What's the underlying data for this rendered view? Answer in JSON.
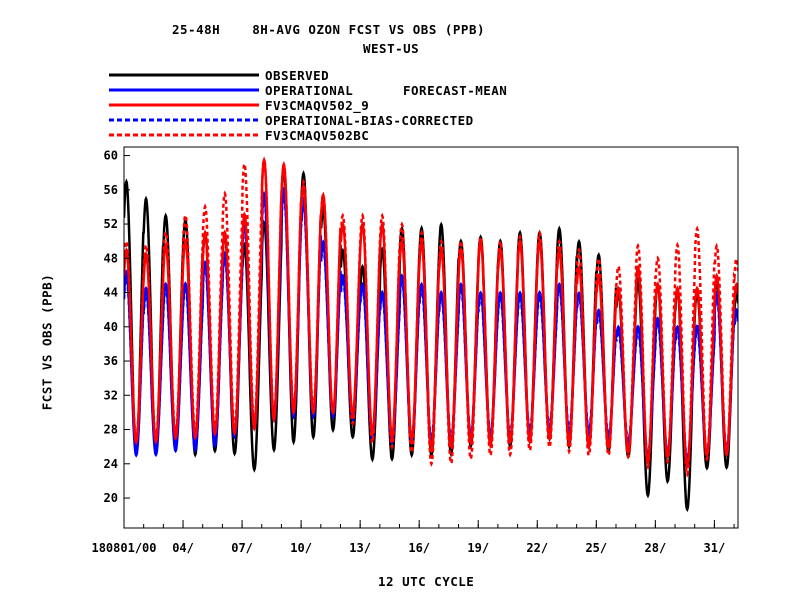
{
  "chart_data": {
    "type": "line",
    "title": "25-48H    8H-AVG OZON FCST VS OBS (PPB)",
    "subtitle": "WEST-US",
    "legend_title": "FORECAST-MEAN",
    "xlabel": "12 UTC CYCLE",
    "ylabel": "FCST VS OBS (PPB)",
    "x_ticks": [
      "180801/00",
      "04/",
      "07/",
      "10/",
      "13/",
      "16/",
      "19/",
      "22/",
      "25/",
      "28/",
      "31/"
    ],
    "x_tick_days": [
      1,
      4,
      7,
      10,
      13,
      16,
      19,
      22,
      25,
      28,
      31
    ],
    "xlim": [
      1,
      32.2
    ],
    "y_ticks": [
      20,
      24,
      28,
      32,
      36,
      40,
      44,
      48,
      52,
      56,
      60
    ],
    "ylim": [
      16.5,
      61
    ],
    "legend_placement": "top-left, above plot",
    "series": [
      {
        "name": "OBSERVED",
        "color": "#000000",
        "dash": "solid",
        "peaks": [
          57,
          55,
          53,
          52.5,
          51,
          51,
          49.5,
          52,
          58.5,
          58,
          54,
          49,
          47,
          49,
          51.5,
          51.5,
          52,
          50,
          50.5,
          50,
          51,
          51,
          51.5,
          50,
          48.5,
          44,
          45.5,
          45,
          44.5,
          44,
          45.5,
          44,
          43
        ],
        "troughs": [
          25.5,
          25.5,
          26,
          25,
          25.5,
          25.5,
          23,
          25.5,
          26.5,
          27,
          28,
          27.5,
          24.5,
          24.5,
          25,
          25,
          25,
          26,
          26.5,
          26,
          26.5,
          27,
          26,
          26,
          25.5,
          25.5,
          20,
          22.5,
          18,
          23.5,
          23.5,
          24,
          25
        ]
      },
      {
        "name": "OPERATIONAL",
        "color": "#0000ff",
        "dash": "solid",
        "peaks": [
          46.5,
          44.5,
          45,
          45,
          47.5,
          48.5,
          52,
          55.5,
          56,
          55,
          50,
          46,
          45,
          44,
          46,
          45,
          44,
          45,
          44,
          44,
          44,
          44,
          45,
          44,
          42,
          40,
          40,
          41,
          40,
          40,
          44,
          42,
          41
        ],
        "troughs": [
          25,
          25,
          25.5,
          25.5,
          26,
          27,
          28,
          29,
          29.5,
          29.5,
          29.5,
          29.5,
          27,
          26.5,
          26.5,
          26.5,
          26.5,
          27,
          27,
          27,
          27.5,
          28,
          27.5,
          27.5,
          27,
          26.5,
          24.5,
          25,
          24,
          25,
          25,
          26,
          26
        ]
      },
      {
        "name": "FV3CMAQV502_9",
        "color": "#ff0000",
        "dash": "solid",
        "peaks": [
          49,
          48.5,
          49.5,
          50,
          51,
          51,
          53,
          59.5,
          59,
          56.5,
          55.5,
          52,
          52,
          52,
          50,
          50,
          49,
          49,
          50,
          49,
          50,
          50,
          49,
          47,
          46,
          44.5,
          47,
          45,
          44.5,
          44.5,
          46,
          45,
          43
        ],
        "troughs": [
          26.5,
          26.5,
          27,
          27,
          27.5,
          27.5,
          28,
          29,
          30,
          30,
          30,
          30,
          27.5,
          27,
          27,
          25.5,
          26,
          26.5,
          26,
          26.5,
          26.5,
          27,
          26.5,
          26,
          26,
          25.5,
          24,
          25,
          23.5,
          25,
          25,
          26,
          26.5
        ]
      },
      {
        "name": "OPERATIONAL-BIAS-CORRECTED",
        "color": "#0000ff",
        "dash": "dashed",
        "peaks": [
          46,
          44,
          44.5,
          44.5,
          47,
          48,
          51.5,
          55,
          55.5,
          54.5,
          49.5,
          45.5,
          44.5,
          43.5,
          45.5,
          44.5,
          43.5,
          44.5,
          43.5,
          43.5,
          43.5,
          43.5,
          44.5,
          43.5,
          41.5,
          39.5,
          39.5,
          40.5,
          39.5,
          39.5,
          43.5,
          41.5,
          40.5
        ],
        "troughs": [
          25.5,
          25.5,
          26,
          26,
          26.5,
          27.5,
          28.5,
          29.5,
          30,
          30,
          30,
          30,
          27.5,
          27,
          27,
          27,
          27,
          27.5,
          27.5,
          27.5,
          28,
          28.5,
          28,
          28,
          27.5,
          27,
          25,
          25.5,
          24.5,
          25.5,
          25.5,
          26.5,
          26.5
        ]
      },
      {
        "name": "FV3CMAQV502BC",
        "color": "#ff0000",
        "dash": "dashed",
        "peaks": [
          50,
          49.5,
          51,
          53,
          54,
          55.5,
          59,
          59.5,
          59,
          57,
          55.5,
          53,
          53,
          53,
          52,
          51,
          50,
          50,
          50.5,
          50,
          50.5,
          51,
          50,
          49,
          48,
          47,
          49.5,
          48,
          49.5,
          51.5,
          49.5,
          48,
          45
        ],
        "troughs": [
          27,
          27,
          27.5,
          27.5,
          28,
          28,
          28.5,
          29.5,
          30.5,
          30.5,
          30,
          29,
          26.5,
          26,
          25.5,
          24,
          24,
          24.5,
          25,
          25,
          25.5,
          26,
          25.5,
          25,
          25,
          25,
          23.5,
          24.5,
          22.5,
          24.5,
          25,
          25.5,
          26
        ]
      }
    ]
  }
}
